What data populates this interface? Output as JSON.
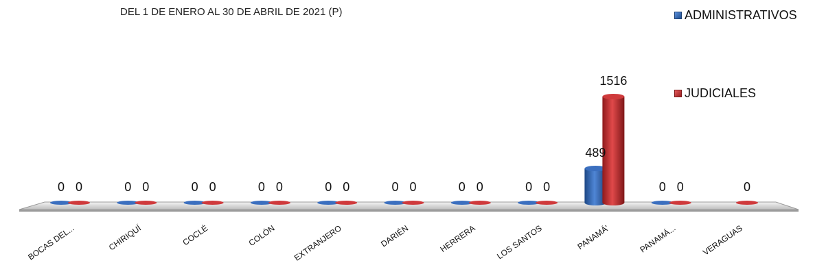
{
  "chart_data": {
    "type": "bar",
    "title": "",
    "subtitle": "DEL 1 DE ENERO  AL 30 DE ABRIL DE 2021 (P)",
    "categories": [
      "BOCAS DEL...",
      "CHIRIQUÍ",
      "COCLÉ",
      "COLÓN",
      "EXTRANJERO",
      "DARIÉN",
      "HERRERA",
      "LOS SANTOS",
      "PANAMÁ'",
      "PANAMÁ...",
      "VERAGUAS"
    ],
    "series": [
      {
        "name": "ADMINISTRATIVOS",
        "color": "#2E5FA6",
        "values": [
          0,
          0,
          0,
          0,
          0,
          0,
          0,
          0,
          489,
          0,
          null
        ]
      },
      {
        "name": "JUDICIALES",
        "color": "#C0292B",
        "values": [
          0,
          0,
          0,
          0,
          0,
          0,
          0,
          0,
          1516,
          0,
          0
        ]
      }
    ],
    "xlabel": "",
    "ylabel": "",
    "ylim": [
      0,
      1516
    ],
    "grid": false,
    "legend_position": "top-right",
    "style": "3d-cylinder"
  }
}
